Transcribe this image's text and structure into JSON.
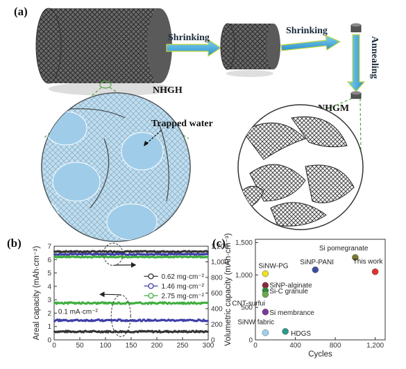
{
  "panel_a": {
    "label": "(a)",
    "arrow1": "Shrinking",
    "arrow2": "Shrinking",
    "arrow3": "Annealing",
    "nhgh": "NHGH",
    "nhgm": "NHGM",
    "trapped_water": "Trapped water",
    "colors": {
      "arrow_fill": "#5bc0e8",
      "arrow_edge": "#c7d93b",
      "water": "#a9d4ee",
      "gel": "#4a4a4a"
    }
  },
  "panel_b": {
    "label": "(b)",
    "ylabel_left": "Areal capacity (mAh·cm⁻²)",
    "current_label": "0.1 mA·cm⁻²"
  },
  "panel_c": {
    "label": "(c)"
  },
  "chart_data": [
    {
      "type": "line",
      "panel": "(b)",
      "title": "",
      "xlabel": "",
      "ylabel": "Areal capacity (mAh·cm⁻²)",
      "xlim": [
        0,
        300
      ],
      "ylim": [
        0,
        7
      ],
      "y2lim": [
        0,
        1200
      ],
      "x_ticks": [
        0,
        50,
        100,
        150,
        200,
        250,
        300
      ],
      "y_ticks": [
        0,
        1,
        2,
        3,
        4,
        5,
        6,
        7
      ],
      "y2_ticks": [
        "0",
        "200",
        "400",
        "600",
        "800",
        "1,000",
        "1,200"
      ],
      "legend_position": "center-right",
      "series": [
        {
          "name": "0.62 mg·cm⁻²",
          "color": "#333333",
          "capacity": 0.62,
          "coulombic_efficiency": 6.6
        },
        {
          "name": "1.46 mg·cm⁻²",
          "color": "#3f3fa8",
          "capacity": 1.46,
          "coulombic_efficiency": 6.4
        },
        {
          "name": "2.75 mg·cm⁻²",
          "color": "#3fae3f",
          "capacity": 2.75,
          "coulombic_efficiency": 6.2
        }
      ]
    },
    {
      "type": "scatter",
      "panel": "(c)",
      "title": "",
      "xlabel": "Cycles",
      "ylabel": "Volumetric capacity (mAh·cm⁻³)",
      "xlim": [
        0,
        1300
      ],
      "ylim": [
        0,
        1550
      ],
      "x_ticks": [
        0,
        400,
        800,
        1200
      ],
      "x_tick_labels": [
        "0",
        "400",
        "800",
        "1,200"
      ],
      "y_ticks": [
        0,
        500,
        1000,
        1500
      ],
      "y_tick_labels": [
        "0",
        "500",
        "1,000",
        "1,500"
      ],
      "grid": false,
      "points": [
        {
          "label": "Si pomegranate",
          "x": 1000,
          "y": 1270,
          "color": "#7a7a30"
        },
        {
          "label": "This work",
          "x": 1200,
          "y": 1050,
          "color": "#e03030"
        },
        {
          "label": "SiNP-PANI",
          "x": 600,
          "y": 1080,
          "color": "#3a4ea0"
        },
        {
          "label": "SiNW-PG",
          "x": 100,
          "y": 1020,
          "color": "#f0e020"
        },
        {
          "label": "SiNP-alginate",
          "x": 100,
          "y": 840,
          "color": "#8a2a3a"
        },
        {
          "label": "Si-C granule",
          "x": 100,
          "y": 760,
          "color": "#2e8a3a"
        },
        {
          "label": "CNT-surfui",
          "x": 100,
          "y": 700,
          "color": "#6aaa4a"
        },
        {
          "label": "Si membrance",
          "x": 100,
          "y": 430,
          "color": "#7a3a9a"
        },
        {
          "label": "SiNW fabric",
          "x": 100,
          "y": 110,
          "color": "#a0d0f0"
        },
        {
          "label": "HDGS",
          "x": 300,
          "y": 130,
          "color": "#2a9a8a"
        }
      ]
    }
  ]
}
